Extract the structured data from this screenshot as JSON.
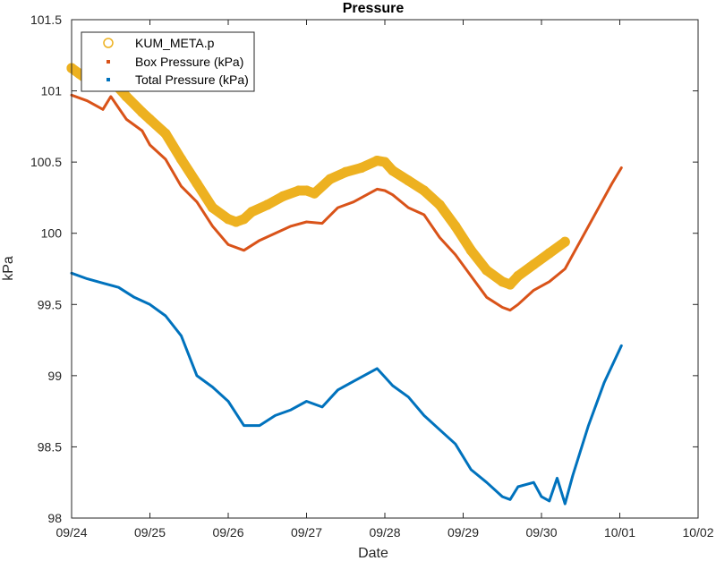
{
  "chart_data": {
    "type": "line",
    "title": "Pressure",
    "xlabel": "Date",
    "ylabel": "kPa",
    "x_tick_labels": [
      "09/24",
      "09/25",
      "09/26",
      "09/27",
      "09/28",
      "09/29",
      "09/30",
      "10/01",
      "10/02"
    ],
    "xlim": [
      "09/24",
      "10/02"
    ],
    "ylim": [
      98,
      101.5
    ],
    "y_ticks": [
      98,
      98.5,
      99,
      99.5,
      100,
      100.5,
      101,
      101.5
    ],
    "y_tick_labels": [
      "98",
      "98.5",
      "99",
      "99.5",
      "100",
      "100.5",
      "101",
      "101.5"
    ],
    "grid": false,
    "legend_position": "top-left",
    "x_units": "days after 09/24",
    "series": [
      {
        "name": "KUM_META.p",
        "marker": "circle",
        "color": "#EDB120",
        "x": [
          0.0,
          0.1,
          0.3,
          0.5,
          0.7,
          0.9,
          1.0,
          1.2,
          1.4,
          1.6,
          1.8,
          2.0,
          2.1,
          2.2,
          2.3,
          2.5,
          2.7,
          2.9,
          3.0,
          3.1,
          3.3,
          3.5,
          3.7,
          3.9,
          4.0,
          4.1,
          4.3,
          4.5,
          4.7,
          4.9,
          5.1,
          5.3,
          5.5,
          5.6,
          5.7,
          5.9,
          6.1,
          6.3
        ],
        "values": [
          101.16,
          101.12,
          101.04,
          101.08,
          100.96,
          100.85,
          100.8,
          100.7,
          100.52,
          100.35,
          100.18,
          100.1,
          100.08,
          100.1,
          100.15,
          100.2,
          100.26,
          100.3,
          100.3,
          100.28,
          100.38,
          100.43,
          100.46,
          100.51,
          100.5,
          100.44,
          100.37,
          100.3,
          100.2,
          100.05,
          99.88,
          99.74,
          99.66,
          99.64,
          99.7,
          99.78,
          99.86,
          99.94
        ]
      },
      {
        "name": "Box Pressure (kPa)",
        "marker": "dot",
        "color": "#D95319",
        "x": [
          0.0,
          0.2,
          0.4,
          0.5,
          0.7,
          0.9,
          1.0,
          1.2,
          1.4,
          1.6,
          1.8,
          2.0,
          2.2,
          2.4,
          2.6,
          2.8,
          3.0,
          3.2,
          3.4,
          3.6,
          3.8,
          3.9,
          4.0,
          4.1,
          4.3,
          4.5,
          4.7,
          4.9,
          5.1,
          5.3,
          5.5,
          5.6,
          5.7,
          5.9,
          6.1,
          6.3,
          6.5,
          6.7,
          6.9,
          7.02
        ],
        "values": [
          100.97,
          100.93,
          100.87,
          100.96,
          100.8,
          100.72,
          100.62,
          100.52,
          100.33,
          100.22,
          100.05,
          99.92,
          99.88,
          99.95,
          100.0,
          100.05,
          100.08,
          100.07,
          100.18,
          100.22,
          100.28,
          100.31,
          100.3,
          100.27,
          100.18,
          100.13,
          99.97,
          99.85,
          99.7,
          99.55,
          99.48,
          99.46,
          99.5,
          99.6,
          99.66,
          99.75,
          99.95,
          100.15,
          100.35,
          100.46
        ]
      },
      {
        "name": "Total Pressure (kPa)",
        "marker": "dot",
        "color": "#0072BD",
        "x": [
          0.0,
          0.2,
          0.4,
          0.6,
          0.8,
          1.0,
          1.2,
          1.4,
          1.6,
          1.8,
          2.0,
          2.2,
          2.4,
          2.6,
          2.8,
          3.0,
          3.2,
          3.4,
          3.6,
          3.8,
          3.9,
          4.0,
          4.1,
          4.3,
          4.5,
          4.7,
          4.9,
          5.1,
          5.3,
          5.5,
          5.6,
          5.7,
          5.9,
          6.0,
          6.1,
          6.2,
          6.3,
          6.4,
          6.6,
          6.8,
          7.02
        ],
        "values": [
          99.72,
          99.68,
          99.65,
          99.62,
          99.55,
          99.5,
          99.42,
          99.28,
          99.0,
          98.92,
          98.82,
          98.65,
          98.65,
          98.72,
          98.76,
          98.82,
          98.78,
          98.9,
          98.96,
          99.02,
          99.05,
          98.99,
          98.93,
          98.85,
          98.72,
          98.62,
          98.52,
          98.34,
          98.25,
          98.15,
          98.13,
          98.22,
          98.25,
          98.15,
          98.12,
          98.28,
          98.1,
          98.3,
          98.65,
          98.95,
          99.21
        ]
      }
    ]
  }
}
